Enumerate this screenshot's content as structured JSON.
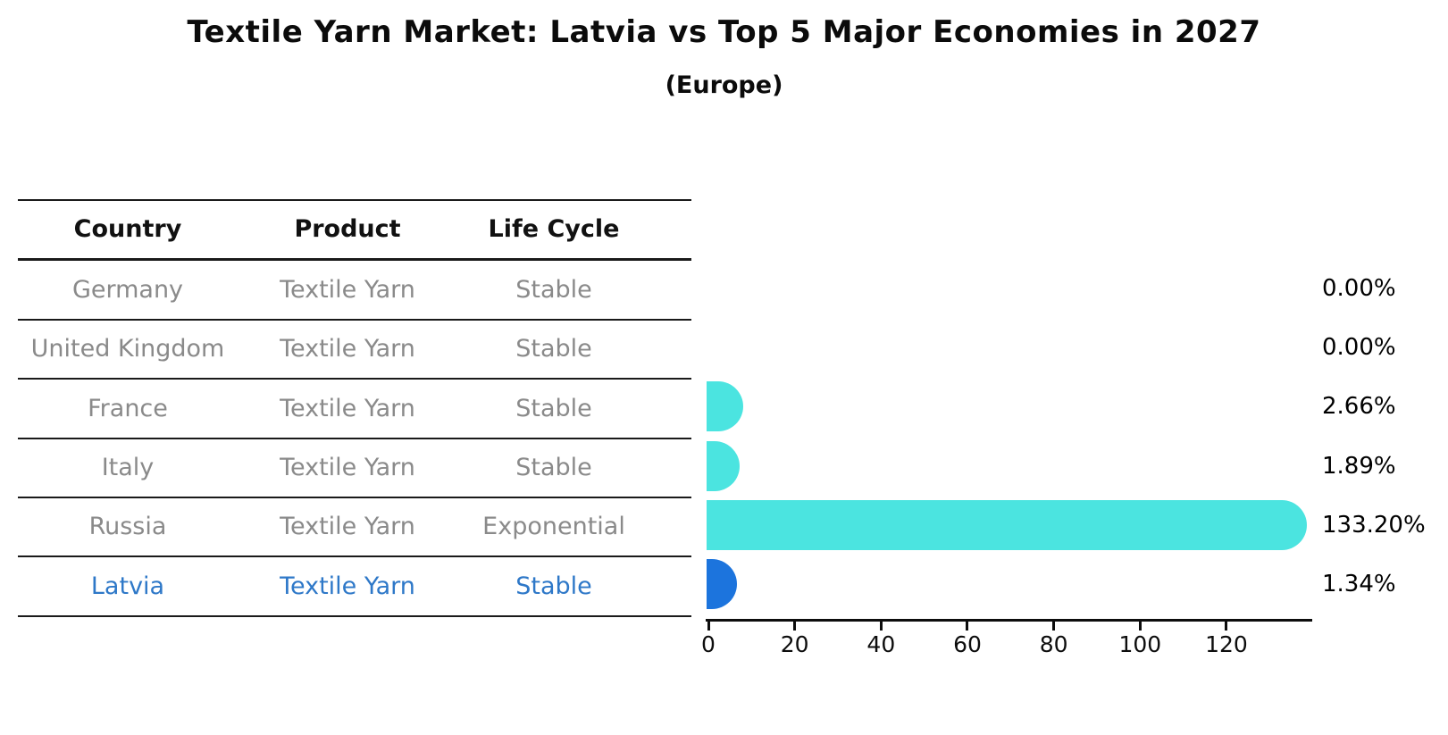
{
  "chart_data": {
    "type": "bar",
    "orientation": "horizontal",
    "title": "Textile Yarn Market: Latvia vs Top 5 Major Economies in 2027",
    "subtitle": "(Europe)",
    "categories": [
      "Germany",
      "United Kingdom",
      "France",
      "Italy",
      "Russia",
      "Latvia"
    ],
    "values": [
      0.0,
      0.0,
      2.66,
      1.89,
      133.2,
      1.34
    ],
    "value_labels": [
      "0.00%",
      "0.00%",
      "2.66%",
      "1.89%",
      "133.20%",
      "1.34%"
    ],
    "highlight_category": "Latvia",
    "xlabel": "",
    "ylabel": "",
    "xlim": [
      0,
      140
    ],
    "xticks": [
      0,
      20,
      40,
      60,
      80,
      100,
      120
    ],
    "grid": false,
    "legend": "none",
    "bar_colors": {
      "default": "#4BE4E0",
      "highlight": "#1C74DD"
    },
    "text_colors": {
      "row": "#8a8a8a",
      "header": "#111111",
      "highlight": "#2E78C8",
      "value_label": "#000000"
    },
    "table": {
      "headers": [
        "Country",
        "Product",
        "Life Cycle"
      ],
      "rows": [
        {
          "country": "Germany",
          "product": "Textile Yarn",
          "life_cycle": "Stable"
        },
        {
          "country": "United Kingdom",
          "product": "Textile Yarn",
          "life_cycle": "Stable"
        },
        {
          "country": "France",
          "product": "Textile Yarn",
          "life_cycle": "Stable"
        },
        {
          "country": "Italy",
          "product": "Textile Yarn",
          "life_cycle": "Stable"
        },
        {
          "country": "Russia",
          "product": "Textile Yarn",
          "life_cycle": "Exponential"
        },
        {
          "country": "Latvia",
          "product": "Textile Yarn",
          "life_cycle": "Stable"
        }
      ]
    }
  }
}
